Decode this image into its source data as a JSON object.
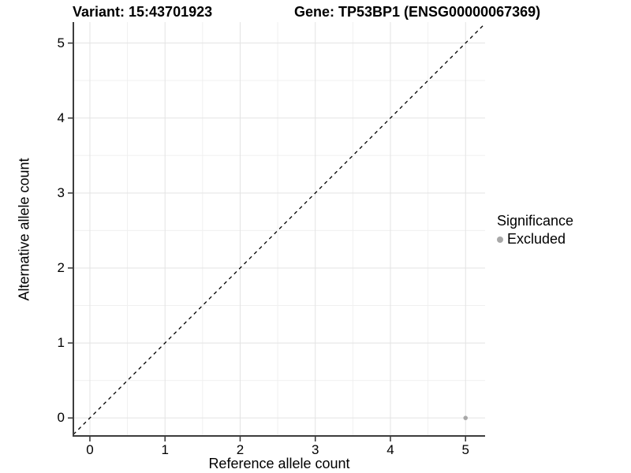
{
  "header": {
    "title_left": "Variant: 15:43701923",
    "title_right": "Gene: TP53BP1 (ENSG00000067369)"
  },
  "chart_data": {
    "type": "scatter",
    "title": "Variant: 15:43701923 — Gene: TP53BP1 (ENSG00000067369)",
    "xlabel": "Reference allele count",
    "ylabel": "Alternative allele count",
    "xlim": [
      -0.22,
      5.26
    ],
    "ylim": [
      -0.24,
      5.28
    ],
    "x_ticks": [
      0,
      1,
      2,
      3,
      4,
      5
    ],
    "y_ticks": [
      0,
      1,
      2,
      3,
      4,
      5
    ],
    "minor_grid_step": 0.5,
    "grid": true,
    "series": [
      {
        "name": "Excluded",
        "color": "#a8a8a8",
        "points": [
          {
            "x": 5,
            "y": 0
          }
        ]
      }
    ],
    "reference_line": {
      "type": "identity",
      "style": "dashed",
      "color": "#000000"
    },
    "legend": {
      "title": "Significance",
      "position": "right",
      "items": [
        {
          "label": "Excluded",
          "color": "#a8a8a8"
        }
      ]
    },
    "colors": {
      "major_grid": "#e3e3e3",
      "minor_grid": "#f0f0f0",
      "axis_line": "#3d3d3d",
      "tick_mark": "#333333"
    }
  }
}
